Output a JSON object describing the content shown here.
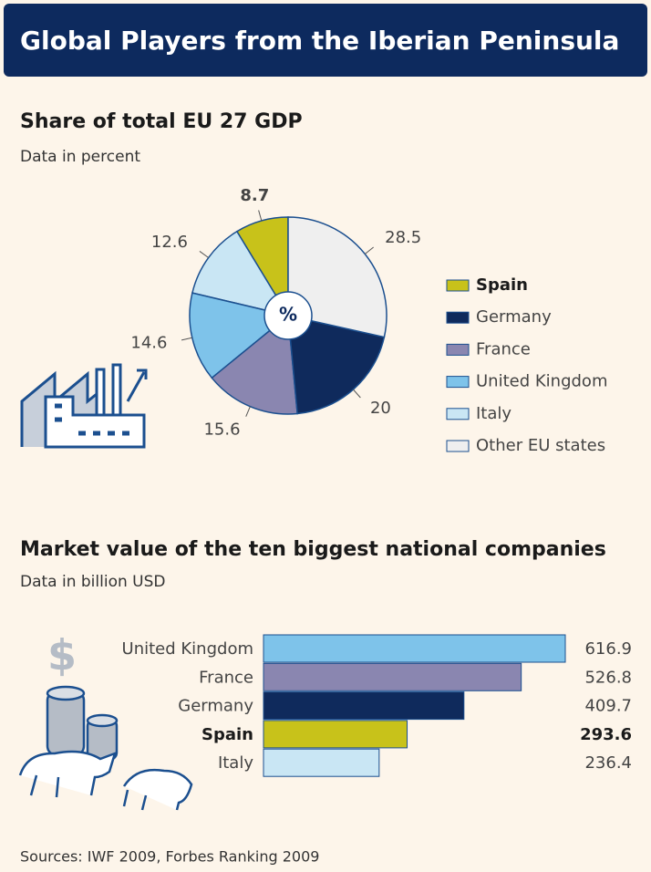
{
  "title": "Global Players from the Iberian Peninsula",
  "chart_data": [
    {
      "type": "pie",
      "title": "Share of total EU 27 GDP",
      "subtitle": "Data in percent",
      "center_label": "%",
      "categories": [
        "Spain",
        "Italy",
        "United Kingdom",
        "France",
        "Germany",
        "Other EU states"
      ],
      "values": [
        8.7,
        12.6,
        14.6,
        15.6,
        20,
        28.5
      ],
      "colors": [
        "#c8c21a",
        "#c9e6f4",
        "#7ec3ea",
        "#8a86b0",
        "#0f2a5c",
        "#efefef"
      ],
      "legend": [
        "Spain",
        "Germany",
        "France",
        "United Kingdom",
        "Italy",
        "Other EU states"
      ],
      "highlight": "Spain"
    },
    {
      "type": "bar",
      "title": "Market value of the ten biggest national companies",
      "subtitle": "Data in billion USD",
      "categories": [
        "United Kingdom",
        "France",
        "Germany",
        "Spain",
        "Italy"
      ],
      "values": [
        616.9,
        526.8,
        409.7,
        293.6,
        236.4
      ],
      "colors": [
        "#7ec3ea",
        "#8a86b0",
        "#0f2a5c",
        "#c8c21a",
        "#c9e6f4"
      ],
      "highlight": "Spain"
    }
  ],
  "source": "Sources: IWF 2009, Forbes Ranking 2009"
}
